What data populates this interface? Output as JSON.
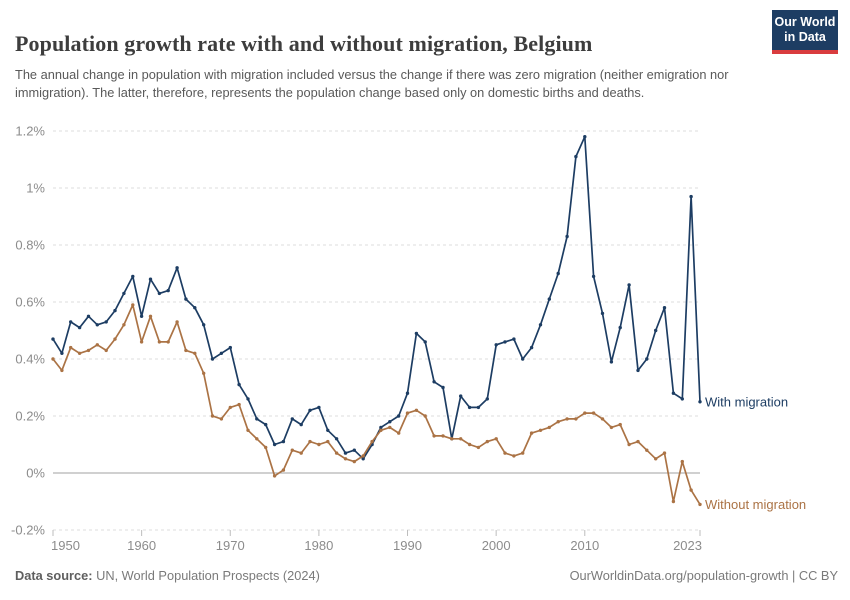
{
  "header": {
    "title": "Population growth rate with and without migration, Belgium",
    "subtitle": "The annual change in population with migration included versus the change if there was zero migration (neither emigration nor immigration). The latter, therefore, represents the population change based only on domestic births and deaths.",
    "logo": {
      "line1": "Our World",
      "line2": "in Data",
      "bg_color": "#1d3d63",
      "accent_color": "#d93c3e"
    }
  },
  "chart_data": {
    "type": "line",
    "title": "Population growth rate with and without migration, Belgium",
    "xlabel": "",
    "ylabel": "",
    "xlim": [
      1950,
      2023
    ],
    "ylim": [
      -0.2,
      1.2
    ],
    "grid": "dashed horizontal, solid zero line",
    "legend_position": "end-of-line labels",
    "x": [
      1950,
      1951,
      1952,
      1953,
      1954,
      1955,
      1956,
      1957,
      1958,
      1959,
      1960,
      1961,
      1962,
      1963,
      1964,
      1965,
      1966,
      1967,
      1968,
      1969,
      1970,
      1971,
      1972,
      1973,
      1974,
      1975,
      1976,
      1977,
      1978,
      1979,
      1980,
      1981,
      1982,
      1983,
      1984,
      1985,
      1986,
      1987,
      1988,
      1989,
      1990,
      1991,
      1992,
      1993,
      1994,
      1995,
      1996,
      1997,
      1998,
      1999,
      2000,
      2001,
      2002,
      2003,
      2004,
      2005,
      2006,
      2007,
      2008,
      2009,
      2010,
      2011,
      2012,
      2013,
      2014,
      2015,
      2016,
      2017,
      2018,
      2019,
      2020,
      2021,
      2022,
      2023
    ],
    "series": [
      {
        "name": "With migration",
        "color": "#1d3d63",
        "unit": "%",
        "values": [
          0.47,
          0.42,
          0.53,
          0.51,
          0.55,
          0.52,
          0.53,
          0.57,
          0.63,
          0.69,
          0.55,
          0.68,
          0.63,
          0.64,
          0.72,
          0.61,
          0.58,
          0.52,
          0.4,
          0.42,
          0.44,
          0.31,
          0.26,
          0.19,
          0.17,
          0.1,
          0.11,
          0.19,
          0.17,
          0.22,
          0.23,
          0.15,
          0.12,
          0.07,
          0.08,
          0.05,
          0.1,
          0.16,
          0.18,
          0.2,
          0.28,
          0.49,
          0.46,
          0.32,
          0.3,
          0.12,
          0.27,
          0.23,
          0.23,
          0.26,
          0.45,
          0.46,
          0.47,
          0.4,
          0.44,
          0.52,
          0.61,
          0.7,
          0.83,
          1.11,
          1.18,
          0.69,
          0.56,
          0.39,
          0.51,
          0.66,
          0.36,
          0.4,
          0.5,
          0.58,
          0.28,
          0.26,
          0.97,
          0.25
        ]
      },
      {
        "name": "Without migration",
        "color": "#ab7345",
        "unit": "%",
        "values": [
          0.4,
          0.36,
          0.44,
          0.42,
          0.43,
          0.45,
          0.43,
          0.47,
          0.52,
          0.59,
          0.46,
          0.55,
          0.46,
          0.46,
          0.53,
          0.43,
          0.42,
          0.35,
          0.2,
          0.19,
          0.23,
          0.24,
          0.15,
          0.12,
          0.09,
          -0.01,
          0.01,
          0.08,
          0.07,
          0.11,
          0.1,
          0.11,
          0.07,
          0.05,
          0.04,
          0.06,
          0.11,
          0.15,
          0.16,
          0.14,
          0.21,
          0.22,
          0.2,
          0.13,
          0.13,
          0.12,
          0.12,
          0.1,
          0.09,
          0.11,
          0.12,
          0.07,
          0.06,
          0.07,
          0.14,
          0.15,
          0.16,
          0.18,
          0.19,
          0.19,
          0.21,
          0.21,
          0.19,
          0.16,
          0.17,
          0.1,
          0.11,
          0.08,
          0.05,
          0.07,
          -0.1,
          0.04,
          -0.06,
          -0.11
        ]
      }
    ],
    "y_ticks": [
      {
        "value": 1.2,
        "label": "1.2%"
      },
      {
        "value": 1.0,
        "label": "1%"
      },
      {
        "value": 0.8,
        "label": "0.8%"
      },
      {
        "value": 0.6,
        "label": "0.6%"
      },
      {
        "value": 0.4,
        "label": "0.4%"
      },
      {
        "value": 0.2,
        "label": "0.2%"
      },
      {
        "value": 0.0,
        "label": "0%"
      },
      {
        "value": -0.2,
        "label": "-0.2%"
      }
    ],
    "x_ticks": [
      {
        "value": 1950,
        "label": "1950"
      },
      {
        "value": 1960,
        "label": "1960"
      },
      {
        "value": 1970,
        "label": "1970"
      },
      {
        "value": 1980,
        "label": "1980"
      },
      {
        "value": 1990,
        "label": "1990"
      },
      {
        "value": 2000,
        "label": "2000"
      },
      {
        "value": 2010,
        "label": "2010"
      },
      {
        "value": 2023,
        "label": "2023"
      }
    ]
  },
  "footer": {
    "source_label": "Data source:",
    "source_text": " UN, World Population Prospects (2024)",
    "attribution": "OurWorldinData.org/population-growth | CC BY"
  }
}
